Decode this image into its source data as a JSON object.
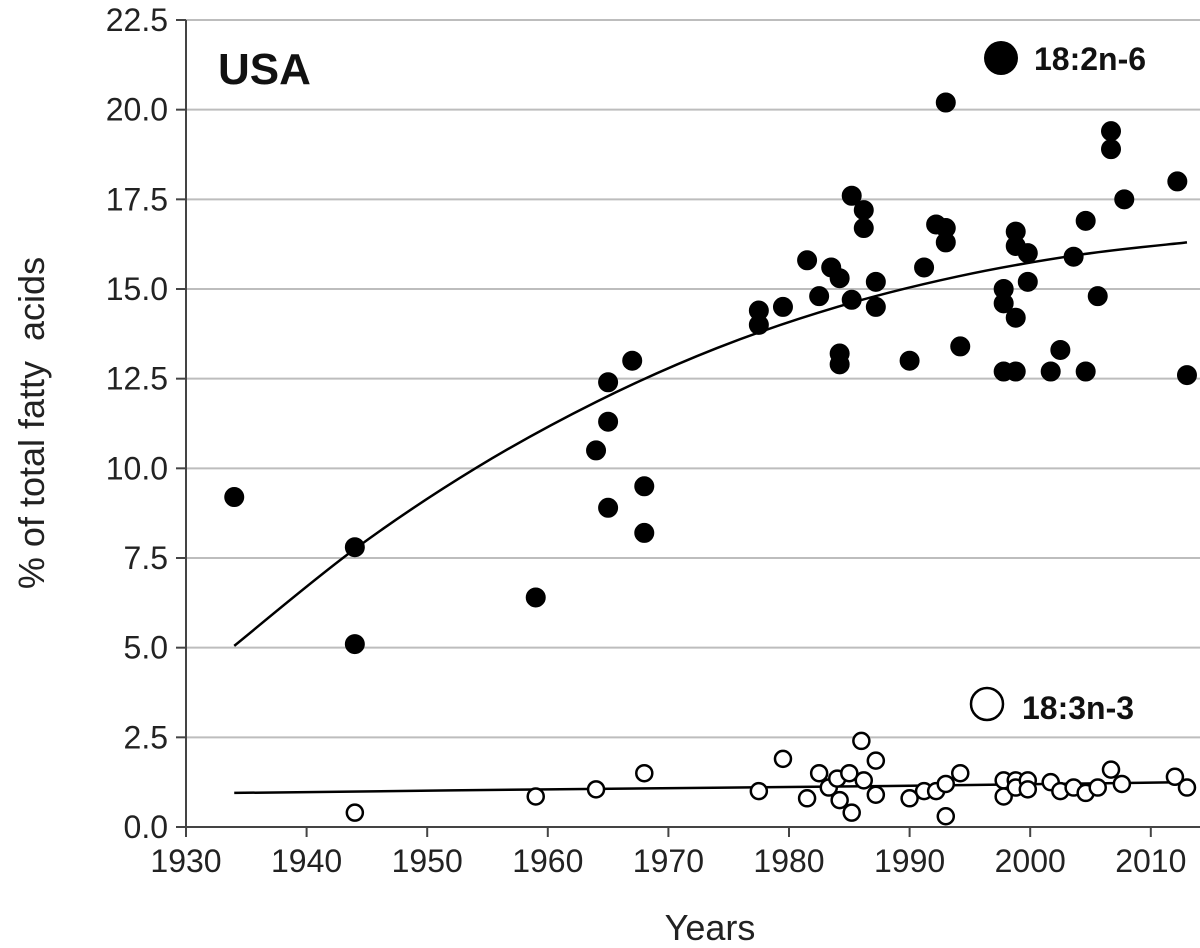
{
  "chart_data": {
    "type": "scatter",
    "title": "USA",
    "xlabel": "Years",
    "ylabel": "% of total fatty  acids",
    "xlim": [
      1930,
      2015
    ],
    "ylim": [
      0,
      22.5
    ],
    "x_ticks": [
      1930,
      1940,
      1950,
      1960,
      1970,
      1980,
      1990,
      2000,
      2010
    ],
    "x_tick_labels": [
      "1930",
      "1940",
      "1950",
      "1960",
      "1970",
      "1980",
      "1990",
      "2000",
      "2010"
    ],
    "y_ticks": [
      0,
      2.5,
      5,
      7.5,
      10,
      12.5,
      15,
      17.5,
      20,
      22.5
    ],
    "y_tick_labels": [
      "0.0",
      "2.5",
      "5.0",
      "7.5",
      "10.0",
      "12.5",
      "15.0",
      "17.5",
      "20.0",
      "22.5"
    ],
    "grid": "horizontal",
    "legend_placement": "top-right",
    "series": [
      {
        "name": "18:2n-6",
        "marker": "filled-circle",
        "color": "#000000",
        "points": [
          [
            1934,
            9.2
          ],
          [
            1944,
            7.8
          ],
          [
            1944,
            5.1
          ],
          [
            1959,
            6.4
          ],
          [
            1964,
            10.5
          ],
          [
            1965,
            12.4
          ],
          [
            1965,
            11.3
          ],
          [
            1965,
            8.9
          ],
          [
            1967,
            13.0
          ],
          [
            1968,
            9.5
          ],
          [
            1968,
            8.2
          ],
          [
            1977.5,
            14.4
          ],
          [
            1977.5,
            14.0
          ],
          [
            1979.5,
            14.5
          ],
          [
            1981.5,
            15.8
          ],
          [
            1982.5,
            14.8
          ],
          [
            1983.5,
            15.6
          ],
          [
            1984.2,
            15.3
          ],
          [
            1984.2,
            13.2
          ],
          [
            1984.2,
            12.9
          ],
          [
            1985.2,
            17.6
          ],
          [
            1985.2,
            14.7
          ],
          [
            1986.2,
            17.2
          ],
          [
            1986.2,
            16.7
          ],
          [
            1987.2,
            15.2
          ],
          [
            1987.2,
            14.5
          ],
          [
            1990,
            13.0
          ],
          [
            1991.2,
            15.6
          ],
          [
            1992.2,
            16.8
          ],
          [
            1993,
            20.2
          ],
          [
            1993,
            16.7
          ],
          [
            1993,
            16.3
          ],
          [
            1994.2,
            13.4
          ],
          [
            1997.8,
            15.0
          ],
          [
            1997.8,
            14.6
          ],
          [
            1997.8,
            12.7
          ],
          [
            1998.8,
            16.6
          ],
          [
            1998.8,
            16.2
          ],
          [
            1998.8,
            14.2
          ],
          [
            1998.8,
            12.7
          ],
          [
            1999.8,
            16.0
          ],
          [
            1999.8,
            15.2
          ],
          [
            2001.7,
            12.7
          ],
          [
            2002.5,
            13.3
          ],
          [
            2003.6,
            15.9
          ],
          [
            2004.6,
            16.9
          ],
          [
            2004.6,
            12.7
          ],
          [
            2005.6,
            14.8
          ],
          [
            2006.7,
            19.4
          ],
          [
            2006.7,
            18.9
          ],
          [
            2007.8,
            17.5
          ],
          [
            2012.2,
            18.0
          ],
          [
            2013,
            12.6
          ]
        ],
        "trend": [
          [
            1934,
            5.05
          ],
          [
            1944,
            7.75
          ],
          [
            1954,
            10.0
          ],
          [
            1964,
            11.85
          ],
          [
            1974,
            13.35
          ],
          [
            1984,
            14.5
          ],
          [
            1994,
            15.35
          ],
          [
            2004,
            15.95
          ],
          [
            2013,
            16.3
          ]
        ]
      },
      {
        "name": "18:3n-3",
        "marker": "open-circle",
        "color": "#000000",
        "points": [
          [
            1944,
            0.4
          ],
          [
            1959,
            0.85
          ],
          [
            1964,
            1.05
          ],
          [
            1968,
            1.5
          ],
          [
            1977.5,
            1.0
          ],
          [
            1979.5,
            1.9
          ],
          [
            1981.5,
            0.8
          ],
          [
            1982.5,
            1.5
          ],
          [
            1983.3,
            1.1
          ],
          [
            1984,
            1.35
          ],
          [
            1984.2,
            0.75
          ],
          [
            1985,
            1.5
          ],
          [
            1985.2,
            0.4
          ],
          [
            1986,
            2.4
          ],
          [
            1986.2,
            1.3
          ],
          [
            1987.2,
            1.85
          ],
          [
            1987.2,
            0.9
          ],
          [
            1990,
            0.8
          ],
          [
            1991.2,
            1.0
          ],
          [
            1992.2,
            1.0
          ],
          [
            1993,
            1.2
          ],
          [
            1993,
            0.3
          ],
          [
            1994.2,
            1.5
          ],
          [
            1997.8,
            1.3
          ],
          [
            1997.8,
            0.85
          ],
          [
            1998.8,
            1.3
          ],
          [
            1998.8,
            1.1
          ],
          [
            1999.8,
            1.3
          ],
          [
            1999.8,
            1.05
          ],
          [
            2001.7,
            1.25
          ],
          [
            2002.5,
            1.0
          ],
          [
            2003.6,
            1.1
          ],
          [
            2004.6,
            0.95
          ],
          [
            2005.6,
            1.1
          ],
          [
            2006.7,
            1.6
          ],
          [
            2007.6,
            1.2
          ],
          [
            2012,
            1.4
          ],
          [
            2013,
            1.1
          ]
        ],
        "trend": [
          [
            1934,
            0.95
          ],
          [
            1960,
            1.05
          ],
          [
            1990,
            1.15
          ],
          [
            2013,
            1.25
          ]
        ]
      }
    ]
  }
}
